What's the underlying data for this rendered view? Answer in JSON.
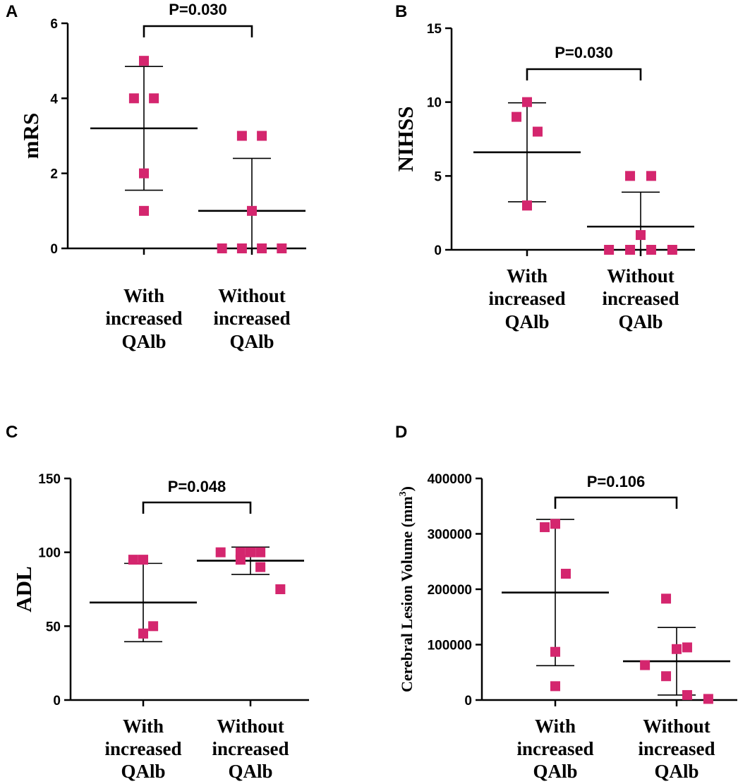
{
  "chart_data": [
    {
      "panel": "A",
      "type": "scatter",
      "title": "",
      "ylabel": "mRS",
      "ylim": [
        0,
        6
      ],
      "yticks": [
        0,
        2,
        4,
        6
      ],
      "categories": [
        [
          "With",
          "increased",
          "QAlb"
        ],
        [
          "Without",
          "increased",
          "QAlb"
        ]
      ],
      "groups": [
        {
          "points": [
            5,
            4,
            4,
            2,
            1
          ],
          "mean": 3.2,
          "upper": 4.85,
          "lower": 1.55
        },
        {
          "points": [
            3,
            3,
            1,
            0,
            0,
            0,
            0
          ],
          "mean": 1.0,
          "upper": 2.4,
          "lower": 0
        }
      ],
      "p_label": "P=0.030",
      "marker_color": "#d4266e"
    },
    {
      "panel": "B",
      "type": "scatter",
      "title": "",
      "ylabel": "NIHSS",
      "ylim": [
        0,
        15
      ],
      "yticks": [
        0,
        5,
        10,
        15
      ],
      "categories": [
        [
          "With",
          "increased",
          "QAlb"
        ],
        [
          "Without",
          "increased",
          "QAlb"
        ]
      ],
      "groups": [
        {
          "points": [
            10,
            9,
            8,
            3,
            3
          ],
          "mean": 6.6,
          "upper": 9.95,
          "lower": 3.25
        },
        {
          "points": [
            5,
            5,
            1,
            0,
            0,
            0,
            0
          ],
          "mean": 1.57,
          "upper": 3.9,
          "lower": 0
        }
      ],
      "p_label": "P=0.030",
      "marker_color": "#d4266e"
    },
    {
      "panel": "C",
      "type": "scatter",
      "title": "",
      "ylabel": "ADL",
      "ylim": [
        0,
        150
      ],
      "yticks": [
        0,
        50,
        100,
        150
      ],
      "categories": [
        [
          "With",
          "increased",
          "QAlb"
        ],
        [
          "Without",
          "increased",
          "QAlb"
        ]
      ],
      "groups": [
        {
          "points": [
            95,
            95,
            50,
            45,
            45
          ],
          "mean": 66,
          "upper": 92.5,
          "lower": 39.5
        },
        {
          "points": [
            100,
            100,
            100,
            100,
            95,
            90,
            75
          ],
          "mean": 94.3,
          "upper": 103.5,
          "lower": 85
        }
      ],
      "p_label": "P=0.048",
      "marker_color": "#d4266e"
    },
    {
      "panel": "D",
      "type": "scatter",
      "title": "",
      "ylabel": "Cerebral Lesion Volume (mm³)",
      "ylim": [
        0,
        400000
      ],
      "yticks": [
        0,
        100000,
        200000,
        300000,
        400000
      ],
      "categories": [
        [
          "With",
          "increased",
          "QAlb"
        ],
        [
          "Without",
          "increased",
          "QAlb"
        ]
      ],
      "groups": [
        {
          "points": [
            318000,
            312000,
            228000,
            87000,
            25000
          ],
          "mean": 194000,
          "upper": 326000,
          "lower": 62000
        },
        {
          "points": [
            183000,
            95000,
            92000,
            63000,
            43000,
            9000,
            2000
          ],
          "mean": 70000,
          "upper": 131000,
          "lower": 9000
        }
      ],
      "p_label": "P=0.106",
      "marker_color": "#d4266e"
    }
  ]
}
